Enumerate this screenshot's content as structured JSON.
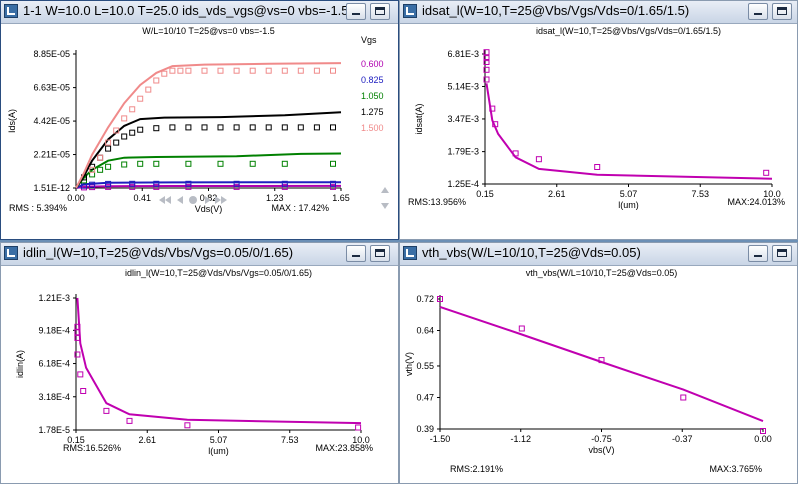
{
  "panes": [
    {
      "title": "1-1  W=10.0  L=10.0  T=25.0  ids_vds_vgs@vs=0 vbs=-1.5",
      "active": true,
      "chart_data": {
        "type": "line",
        "title": "W/L=10/10    T=25@vs=0  vbs=-1.5",
        "xlabel": "Vds(V)",
        "ylabel": "Ids(A)",
        "xlim": [
          0,
          1.65
        ],
        "ylim": [
          0,
          8.85e-05
        ],
        "xticks": [
          "0.00",
          "0.41",
          "0.82",
          "1.23",
          "1.65"
        ],
        "yticks": [
          "1.51E-12",
          "2.21E-05",
          "4.42E-05",
          "6.63E-05",
          "8.85E-05"
        ],
        "ytick_values": [
          0,
          2.21e-05,
          4.42e-05,
          6.63e-05,
          8.85e-05
        ],
        "legend_title": "Vgs",
        "series": [
          {
            "name": "0.600",
            "color": "#b000b0",
            "model": [
              [
                0,
                0
              ],
              [
                0.05,
                8e-07
              ],
              [
                0.2,
                1.2e-06
              ],
              [
                0.6,
                1.3e-06
              ],
              [
                1.65,
                1.4e-06
              ]
            ],
            "meas": [
              [
                0.05,
                4e-07
              ],
              [
                0.1,
                6e-07
              ],
              [
                0.2,
                7e-07
              ],
              [
                0.35,
                7e-07
              ],
              [
                0.5,
                7e-07
              ],
              [
                0.7,
                7e-07
              ],
              [
                1.0,
                7e-07
              ],
              [
                1.3,
                7e-07
              ],
              [
                1.6,
                7e-07
              ]
            ]
          },
          {
            "name": "0.825",
            "color": "#2020c0",
            "model": [
              [
                0,
                0
              ],
              [
                0.05,
                2.5e-06
              ],
              [
                0.2,
                3.5e-06
              ],
              [
                0.6,
                3.7e-06
              ],
              [
                1.65,
                3.8e-06
              ]
            ],
            "meas": [
              [
                0.05,
                1.5e-06
              ],
              [
                0.1,
                2.2e-06
              ],
              [
                0.2,
                2.7e-06
              ],
              [
                0.35,
                2.8e-06
              ],
              [
                0.5,
                2.8e-06
              ],
              [
                0.7,
                2.8e-06
              ],
              [
                1.0,
                2.8e-06
              ],
              [
                1.3,
                2.8e-06
              ],
              [
                1.6,
                2.8e-06
              ]
            ]
          },
          {
            "name": "1.050",
            "color": "#008000",
            "model": [
              [
                0,
                0
              ],
              [
                0.05,
                7e-06
              ],
              [
                0.1,
                1.2e-05
              ],
              [
                0.2,
                1.8e-05
              ],
              [
                0.3,
                2e-05
              ],
              [
                0.5,
                2.05e-05
              ],
              [
                1.0,
                2.1e-05
              ],
              [
                1.4,
                2.25e-05
              ],
              [
                1.65,
                2.28e-05
              ]
            ],
            "meas": [
              [
                0.05,
                5e-06
              ],
              [
                0.1,
                9e-06
              ],
              [
                0.15,
                1.2e-05
              ],
              [
                0.2,
                1.4e-05
              ],
              [
                0.3,
                1.55e-05
              ],
              [
                0.4,
                1.6e-05
              ],
              [
                0.5,
                1.6e-05
              ],
              [
                0.7,
                1.6e-05
              ],
              [
                0.9,
                1.6e-05
              ],
              [
                1.1,
                1.6e-05
              ],
              [
                1.3,
                1.6e-05
              ],
              [
                1.6,
                1.6e-05
              ]
            ]
          },
          {
            "name": "1.275",
            "color": "#000000",
            "model": [
              [
                0,
                0
              ],
              [
                0.05,
                8e-06
              ],
              [
                0.1,
                1.8e-05
              ],
              [
                0.2,
                3.2e-05
              ],
              [
                0.3,
                4.1e-05
              ],
              [
                0.4,
                4.55e-05
              ],
              [
                0.55,
                4.65e-05
              ],
              [
                0.9,
                4.68e-05
              ],
              [
                1.3,
                4.8e-05
              ],
              [
                1.65,
                5e-05
              ]
            ],
            "meas": [
              [
                0.05,
                7e-06
              ],
              [
                0.1,
                1.4e-05
              ],
              [
                0.15,
                2e-05
              ],
              [
                0.2,
                2.6e-05
              ],
              [
                0.25,
                3e-05
              ],
              [
                0.3,
                3.4e-05
              ],
              [
                0.35,
                3.65e-05
              ],
              [
                0.4,
                3.85e-05
              ],
              [
                0.5,
                3.95e-05
              ],
              [
                0.6,
                4e-05
              ],
              [
                0.7,
                4e-05
              ],
              [
                0.8,
                4e-05
              ],
              [
                0.9,
                4e-05
              ],
              [
                1.0,
                4e-05
              ],
              [
                1.1,
                4e-05
              ],
              [
                1.2,
                4e-05
              ],
              [
                1.3,
                4e-05
              ],
              [
                1.4,
                4e-05
              ],
              [
                1.5,
                4e-05
              ],
              [
                1.6,
                4e-05
              ]
            ]
          },
          {
            "name": "1.500",
            "color": "#f08a8a",
            "model": [
              [
                0,
                0
              ],
              [
                0.05,
                1e-05
              ],
              [
                0.1,
                2.2e-05
              ],
              [
                0.2,
                4e-05
              ],
              [
                0.3,
                5.6e-05
              ],
              [
                0.4,
                6.8e-05
              ],
              [
                0.5,
                7.6e-05
              ],
              [
                0.6,
                8.05e-05
              ],
              [
                0.8,
                8.15e-05
              ],
              [
                1.2,
                8.2e-05
              ],
              [
                1.65,
                8.25e-05
              ]
            ],
            "meas": [
              [
                0.1,
                1.2e-05
              ],
              [
                0.15,
                2e-05
              ],
              [
                0.2,
                3e-05
              ],
              [
                0.25,
                3.8e-05
              ],
              [
                0.3,
                4.6e-05
              ],
              [
                0.35,
                5.2e-05
              ],
              [
                0.4,
                5.9e-05
              ],
              [
                0.45,
                6.5e-05
              ],
              [
                0.5,
                7.1e-05
              ],
              [
                0.55,
                7.55e-05
              ],
              [
                0.6,
                7.75e-05
              ],
              [
                0.65,
                7.75e-05
              ],
              [
                0.7,
                7.75e-05
              ],
              [
                0.8,
                7.75e-05
              ],
              [
                0.9,
                7.75e-05
              ],
              [
                1.0,
                7.75e-05
              ],
              [
                1.1,
                7.75e-05
              ],
              [
                1.2,
                7.75e-05
              ],
              [
                1.3,
                7.75e-05
              ],
              [
                1.4,
                7.75e-05
              ],
              [
                1.5,
                7.75e-05
              ],
              [
                1.6,
                7.75e-05
              ]
            ]
          }
        ],
        "rms": "RMS : 5.394%",
        "max": "MAX : 17.42%"
      }
    },
    {
      "title": "idsat_l(W=10,T=25@Vbs/Vgs/Vds=0/1.65/1.5)",
      "active": false,
      "chart_data": {
        "type": "line",
        "title": "idsat_l(W=10,T=25@Vbs/Vgs/Vds=0/1.65/1.5)",
        "xlabel": "l(um)",
        "ylabel": "idsat(A)",
        "xlim": [
          0.15,
          10.0
        ],
        "ylim": [
          0.000125,
          0.00681
        ],
        "xticks": [
          "0.15",
          "2.61",
          "5.07",
          "7.53",
          "10.0"
        ],
        "yticks": [
          "1.25E-4",
          "1.79E-3",
          "3.47E-3",
          "5.14E-3",
          "6.81E-3"
        ],
        "ytick_values": [
          0.000125,
          0.00179,
          0.00347,
          0.00514,
          0.00681
        ],
        "series": [
          {
            "name": "",
            "color": "#c000b0",
            "model": [
              [
                0.2,
                0.0053
              ],
              [
                0.4,
                0.0034
              ],
              [
                0.6,
                0.0027
              ],
              [
                1.2,
                0.0015
              ],
              [
                2.0,
                0.0009
              ],
              [
                4.0,
                0.0006
              ],
              [
                10.0,
                0.0004
              ]
            ],
            "meas": [
              [
                0.2,
                0.0069
              ],
              [
                0.2,
                0.0066
              ],
              [
                0.2,
                0.0064
              ],
              [
                0.2,
                0.006
              ],
              [
                0.2,
                0.0055
              ],
              [
                0.4,
                0.004
              ],
              [
                0.5,
                0.0032
              ],
              [
                1.2,
                0.0017
              ],
              [
                2.0,
                0.0014
              ],
              [
                4.0,
                0.001
              ],
              [
                9.8,
                0.0007
              ]
            ]
          }
        ],
        "rms": "RMS:13.956%",
        "max": "MAX:24.013%"
      }
    },
    {
      "title": "idlin_l(W=10,T=25@Vds/Vbs/Vgs=0.05/0/1.65)",
      "active": false,
      "chart_data": {
        "type": "line",
        "title": "idlin_l(W=10,T=25@Vds/Vbs/Vgs=0.05/0/1.65)",
        "xlabel": "l(um)",
        "ylabel": "idlin(A)",
        "xlim": [
          0.15,
          10.0
        ],
        "ylim": [
          1.78e-05,
          0.00121
        ],
        "xticks": [
          "0.15",
          "2.61",
          "5.07",
          "7.53",
          "10.0"
        ],
        "yticks": [
          "1.78E-5",
          "3.18E-4",
          "6.18E-4",
          "9.18E-4",
          "1.21E-3"
        ],
        "ytick_values": [
          1.78e-05,
          0.000318,
          0.000618,
          0.000918,
          0.00121
        ],
        "series": [
          {
            "name": "",
            "color": "#c000b0",
            "model": [
              [
                0.2,
                0.00121
              ],
              [
                0.3,
                0.0008
              ],
              [
                0.5,
                0.00058
              ],
              [
                1.2,
                0.00026
              ],
              [
                2.0,
                0.00016
              ],
              [
                4.0,
                0.00011
              ],
              [
                10.0,
                8e-05
              ]
            ],
            "meas": [
              [
                0.2,
                0.00095
              ],
              [
                0.2,
                0.0009
              ],
              [
                0.2,
                0.00085
              ],
              [
                0.2,
                0.0007
              ],
              [
                0.3,
                0.00052
              ],
              [
                0.4,
                0.00037
              ],
              [
                1.2,
                0.00019
              ],
              [
                2.0,
                0.0001
              ],
              [
                4.0,
                6e-05
              ],
              [
                9.9,
                4e-05
              ]
            ]
          }
        ],
        "rms": "RMS:16.526%",
        "max": "MAX:23.858%"
      }
    },
    {
      "title": "vth_vbs(W/L=10/10,T=25@Vds=0.05)",
      "active": false,
      "chart_data": {
        "type": "line",
        "title": "vth_vbs(W/L=10/10,T=25@Vds=0.05)",
        "xlabel": "vbs(V)",
        "ylabel": "vth(V)",
        "xlim": [
          -1.5,
          0.0
        ],
        "ylim": [
          0.39,
          0.72
        ],
        "xticks": [
          "-1.50",
          "-1.12",
          "-0.75",
          "-0.37",
          "0.00"
        ],
        "yticks": [
          "0.39",
          "0.47",
          "0.55",
          "0.64",
          "0.72"
        ],
        "ytick_values": [
          0.39,
          0.47,
          0.55,
          0.64,
          0.72
        ],
        "series": [
          {
            "name": "",
            "color": "#c000b0",
            "model": [
              [
                -1.5,
                0.7
              ],
              [
                -1.12,
                0.63
              ],
              [
                -0.75,
                0.56
              ],
              [
                -0.37,
                0.49
              ],
              [
                0.0,
                0.41
              ]
            ],
            "meas": [
              [
                -1.5,
                0.72
              ],
              [
                -1.12,
                0.645
              ],
              [
                -0.75,
                0.565
              ],
              [
                -0.37,
                0.47
              ],
              [
                0.0,
                0.385
              ]
            ]
          }
        ],
        "rms": "RMS:2.191%",
        "max": "MAX:3.765%"
      }
    }
  ]
}
